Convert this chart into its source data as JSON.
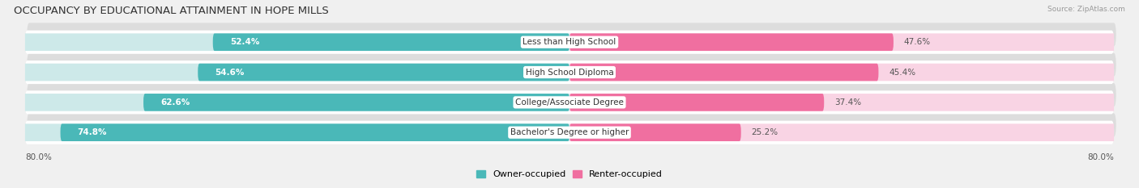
{
  "title": "OCCUPANCY BY EDUCATIONAL ATTAINMENT IN HOPE MILLS",
  "source": "Source: ZipAtlas.com",
  "categories": [
    "Less than High School",
    "High School Diploma",
    "College/Associate Degree",
    "Bachelor's Degree or higher"
  ],
  "owner_values": [
    52.4,
    54.6,
    62.6,
    74.8
  ],
  "renter_values": [
    47.6,
    45.4,
    37.4,
    25.2
  ],
  "owner_color": "#4ab8b8",
  "renter_color": "#f06fa0",
  "owner_color_light": "#cde9e9",
  "renter_color_light": "#f9d4e4",
  "owner_label": "Owner-occupied",
  "renter_label": "Renter-occupied",
  "axis_label_left": "80.0%",
  "axis_label_right": "80.0%",
  "title_fontsize": 9.5,
  "bar_fontsize": 7.5,
  "label_fontsize": 7.5,
  "background_color": "#f0f0f0",
  "row_bg_color": "#ffffff",
  "row_shadow_color": "#dddddd"
}
